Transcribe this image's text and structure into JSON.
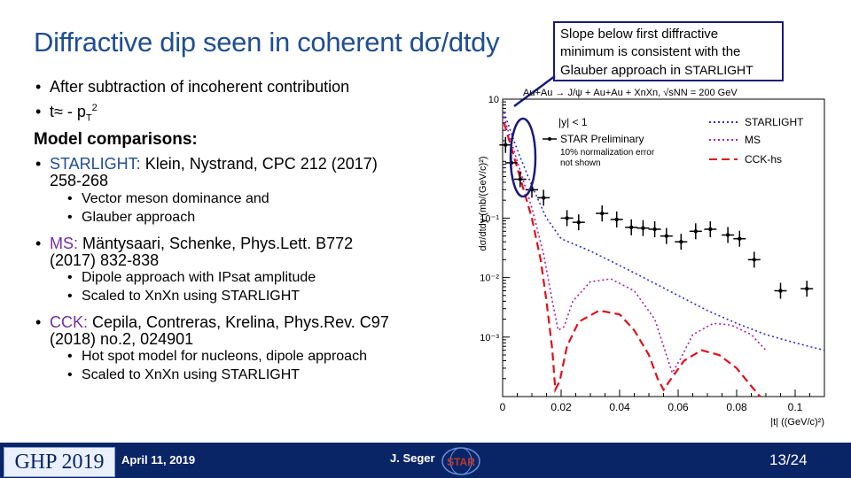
{
  "title": {
    "pre": "Diffractive dip seen in coherent d",
    "sigma": "σ",
    "post": "/dtdy"
  },
  "callout": {
    "line1": "Slope below first diffractive",
    "line2": "minimum is consistent with the",
    "line3": "Glauber approach in",
    "line3_sc": "STARLIGHT"
  },
  "bullets": {
    "b1": "After subtraction of incoherent contribution",
    "b2": "t≈ - p",
    "b2_sub": "T",
    "b2_sup": "2",
    "heading": "Model comparisons:",
    "starlight_label": "STARLIGHT:",
    "starlight_ref1": " Klein, Nystrand, CPC 212 (2017)",
    "starlight_ref2": "258-268",
    "starlight_sub1": "Vector meson dominance and",
    "starlight_sub2": "Glauber approach",
    "ms_label": "MS:",
    "ms_ref1": " Mäntysaari, Schenke, Phys.Lett. B772",
    "ms_ref2": "(2017) 832-838",
    "ms_sub1": "Dipole approach with IPsat amplitude",
    "ms_sub2": "Scaled to XnXn using STARLIGHT",
    "cck_label": "CCK:",
    "cck_ref1": " Cepila, Contreras, Krelina, Phys.Rev. C97",
    "cck_ref2": "(2018) no.2, 024901",
    "cck_sub1": "Hot spot model for nucleons, dipole approach",
    "cck_sub2": "Scaled to XnXn using STARLIGHT"
  },
  "footer": {
    "conference": "GHP 2019",
    "date": "April 11, 2019",
    "author": "J. Seger",
    "page": "13/24",
    "star_logo": "STAR"
  },
  "colors": {
    "title": "#1f4e92",
    "footer": "#0a2566",
    "starlight": "#2b2bd6",
    "ms": "#b21ab2",
    "cck": "#e0101a"
  },
  "chart_data": {
    "type": "scatter",
    "top_label": "Au+Au → J/ψ + Au+Au + XnXn, √sNN = 200 GeV",
    "ylabel": "dσ/dtdy (mb/(GeV/c)²)",
    "xlabel": "|t| ((GeV/c)²)",
    "xlim": [
      0,
      0.11
    ],
    "ylim_log10": [
      -4,
      1
    ],
    "log_y": true,
    "x_ticks": [
      "0",
      "0.02",
      "0.04",
      "0.06",
      "0.08",
      "0.1"
    ],
    "y_ticks": [
      "10⁻¹",
      "10⁻²",
      "10⁻³"
    ],
    "y_tick_top": "10",
    "legend": {
      "cut": "|y| < 1",
      "data": "STAR Preliminary",
      "note1": "10% normalization error",
      "note2": "not shown"
    },
    "series": [
      {
        "name": "STARLIGHT",
        "style": "dotted",
        "points": [
          [
            0.0005,
            6
          ],
          [
            0.005,
            1.4
          ],
          [
            0.01,
            0.35
          ],
          [
            0.015,
            0.1
          ],
          [
            0.02,
            0.045
          ],
          [
            0.03,
            0.028
          ],
          [
            0.04,
            0.016
          ],
          [
            0.05,
            0.009
          ],
          [
            0.06,
            0.005
          ],
          [
            0.07,
            0.0028
          ],
          [
            0.08,
            0.0017
          ],
          [
            0.09,
            0.0011
          ],
          [
            0.1,
            0.0008
          ],
          [
            0.11,
            0.0006
          ]
        ]
      },
      {
        "name": "MS",
        "style": "dotted",
        "points": [
          [
            0.0005,
            5
          ],
          [
            0.005,
            0.9
          ],
          [
            0.01,
            0.15
          ],
          [
            0.014,
            0.025
          ],
          [
            0.017,
            0.004
          ],
          [
            0.019,
            0.0013
          ],
          [
            0.021,
            0.0015
          ],
          [
            0.024,
            0.004
          ],
          [
            0.03,
            0.0085
          ],
          [
            0.037,
            0.0095
          ],
          [
            0.045,
            0.006
          ],
          [
            0.052,
            0.002
          ],
          [
            0.056,
            0.0005
          ],
          [
            0.058,
            0.00025
          ],
          [
            0.061,
            0.00045
          ],
          [
            0.065,
            0.0011
          ],
          [
            0.072,
            0.0017
          ],
          [
            0.078,
            0.0016
          ],
          [
            0.085,
            0.0011
          ],
          [
            0.09,
            0.0006
          ]
        ]
      },
      {
        "name": "CCK-hs",
        "style": "dashed",
        "points": [
          [
            0.0005,
            4
          ],
          [
            0.005,
            0.7
          ],
          [
            0.01,
            0.1
          ],
          [
            0.013,
            0.02
          ],
          [
            0.015,
            0.004
          ],
          [
            0.017,
            0.0006
          ],
          [
            0.018,
            0.00013
          ],
          [
            0.0195,
            0.00018
          ],
          [
            0.022,
            0.0007
          ],
          [
            0.026,
            0.0018
          ],
          [
            0.033,
            0.0028
          ],
          [
            0.04,
            0.0024
          ],
          [
            0.045,
            0.0013
          ],
          [
            0.05,
            0.0005
          ],
          [
            0.053,
            0.0002
          ],
          [
            0.055,
            0.00013
          ],
          [
            0.057,
            0.00018
          ],
          [
            0.062,
            0.0004
          ],
          [
            0.068,
            0.0006
          ],
          [
            0.074,
            0.0005
          ],
          [
            0.08,
            0.0003
          ],
          [
            0.085,
            0.00015
          ],
          [
            0.088,
            0.0001
          ]
        ]
      },
      {
        "name": "STAR Preliminary",
        "style": "points",
        "points": [
          [
            0.001,
            1.7
          ],
          [
            0.003,
            0.85
          ],
          [
            0.006,
            0.45
          ],
          [
            0.01,
            0.3
          ],
          [
            0.014,
            0.22
          ],
          [
            0.022,
            0.1
          ],
          [
            0.026,
            0.085
          ],
          [
            0.034,
            0.12
          ],
          [
            0.039,
            0.095
          ],
          [
            0.044,
            0.07
          ],
          [
            0.048,
            0.068
          ],
          [
            0.052,
            0.065
          ],
          [
            0.056,
            0.05
          ],
          [
            0.061,
            0.04
          ],
          [
            0.066,
            0.06
          ],
          [
            0.071,
            0.065
          ],
          [
            0.077,
            0.052
          ],
          [
            0.081,
            0.045
          ],
          [
            0.086,
            0.02
          ],
          [
            0.095,
            0.006
          ],
          [
            0.104,
            0.0065
          ]
        ]
      }
    ]
  }
}
